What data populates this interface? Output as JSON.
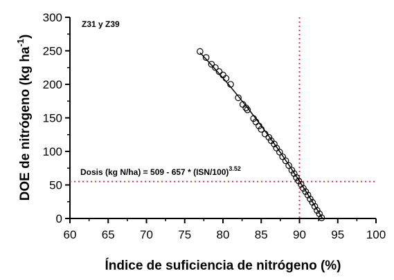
{
  "chart_data": {
    "type": "scatter",
    "panel_label": "Z31 y Z39",
    "xlabel": "Índice de suficiencia de nitrógeno (%)",
    "ylabel_main": "DOE de nitrógeno (kg ha",
    "ylabel_sup": "-1",
    "ylabel_close": ")",
    "equation_main": "Dosis (kg N/ha) = 509 - 657 * (ISN/100)",
    "equation_sup": "3.52",
    "xlim": [
      60,
      100
    ],
    "ylim": [
      0,
      300
    ],
    "x_ticks": [
      60,
      65,
      70,
      75,
      80,
      85,
      90,
      95,
      100
    ],
    "y_ticks": [
      0,
      50,
      100,
      150,
      200,
      250,
      300
    ],
    "x_tick_labels": [
      "60",
      "65",
      "70",
      "75",
      "80",
      "85",
      "90",
      "95",
      "100"
    ],
    "y_tick_labels": [
      "0",
      "50",
      "100",
      "150",
      "200",
      "250",
      "300"
    ],
    "reference_lines": {
      "x": 90,
      "y": 55,
      "color": "#e8333f"
    },
    "fit": {
      "a": 509,
      "b": 657,
      "c": 3.52,
      "x_range": [
        77,
        93
      ]
    },
    "series": [
      {
        "marker": "open-circle",
        "x": [
          77,
          77.8,
          78.5,
          79,
          79.5,
          80,
          80.4,
          81,
          82,
          82.6,
          83,
          83.2,
          84,
          84.3,
          84.7,
          85,
          85.5,
          86,
          86.3,
          86.7,
          87,
          87.4,
          87.8,
          88.2,
          88.6,
          89,
          89.3,
          89.6,
          89.9,
          90.2,
          90.5,
          90.8,
          91.1,
          91.4,
          91.7,
          92,
          92.3,
          92.6,
          92.9
        ],
        "y": [
          249,
          240,
          230,
          225,
          219,
          214,
          209,
          200,
          180,
          170,
          165,
          162,
          149,
          144,
          138,
          133,
          126,
          121,
          116,
          111,
          105,
          99,
          92,
          86,
          79,
          72,
          67,
          61,
          56,
          51,
          45,
          40,
          35,
          29,
          24,
          18,
          12,
          7,
          1
        ]
      }
    ]
  }
}
